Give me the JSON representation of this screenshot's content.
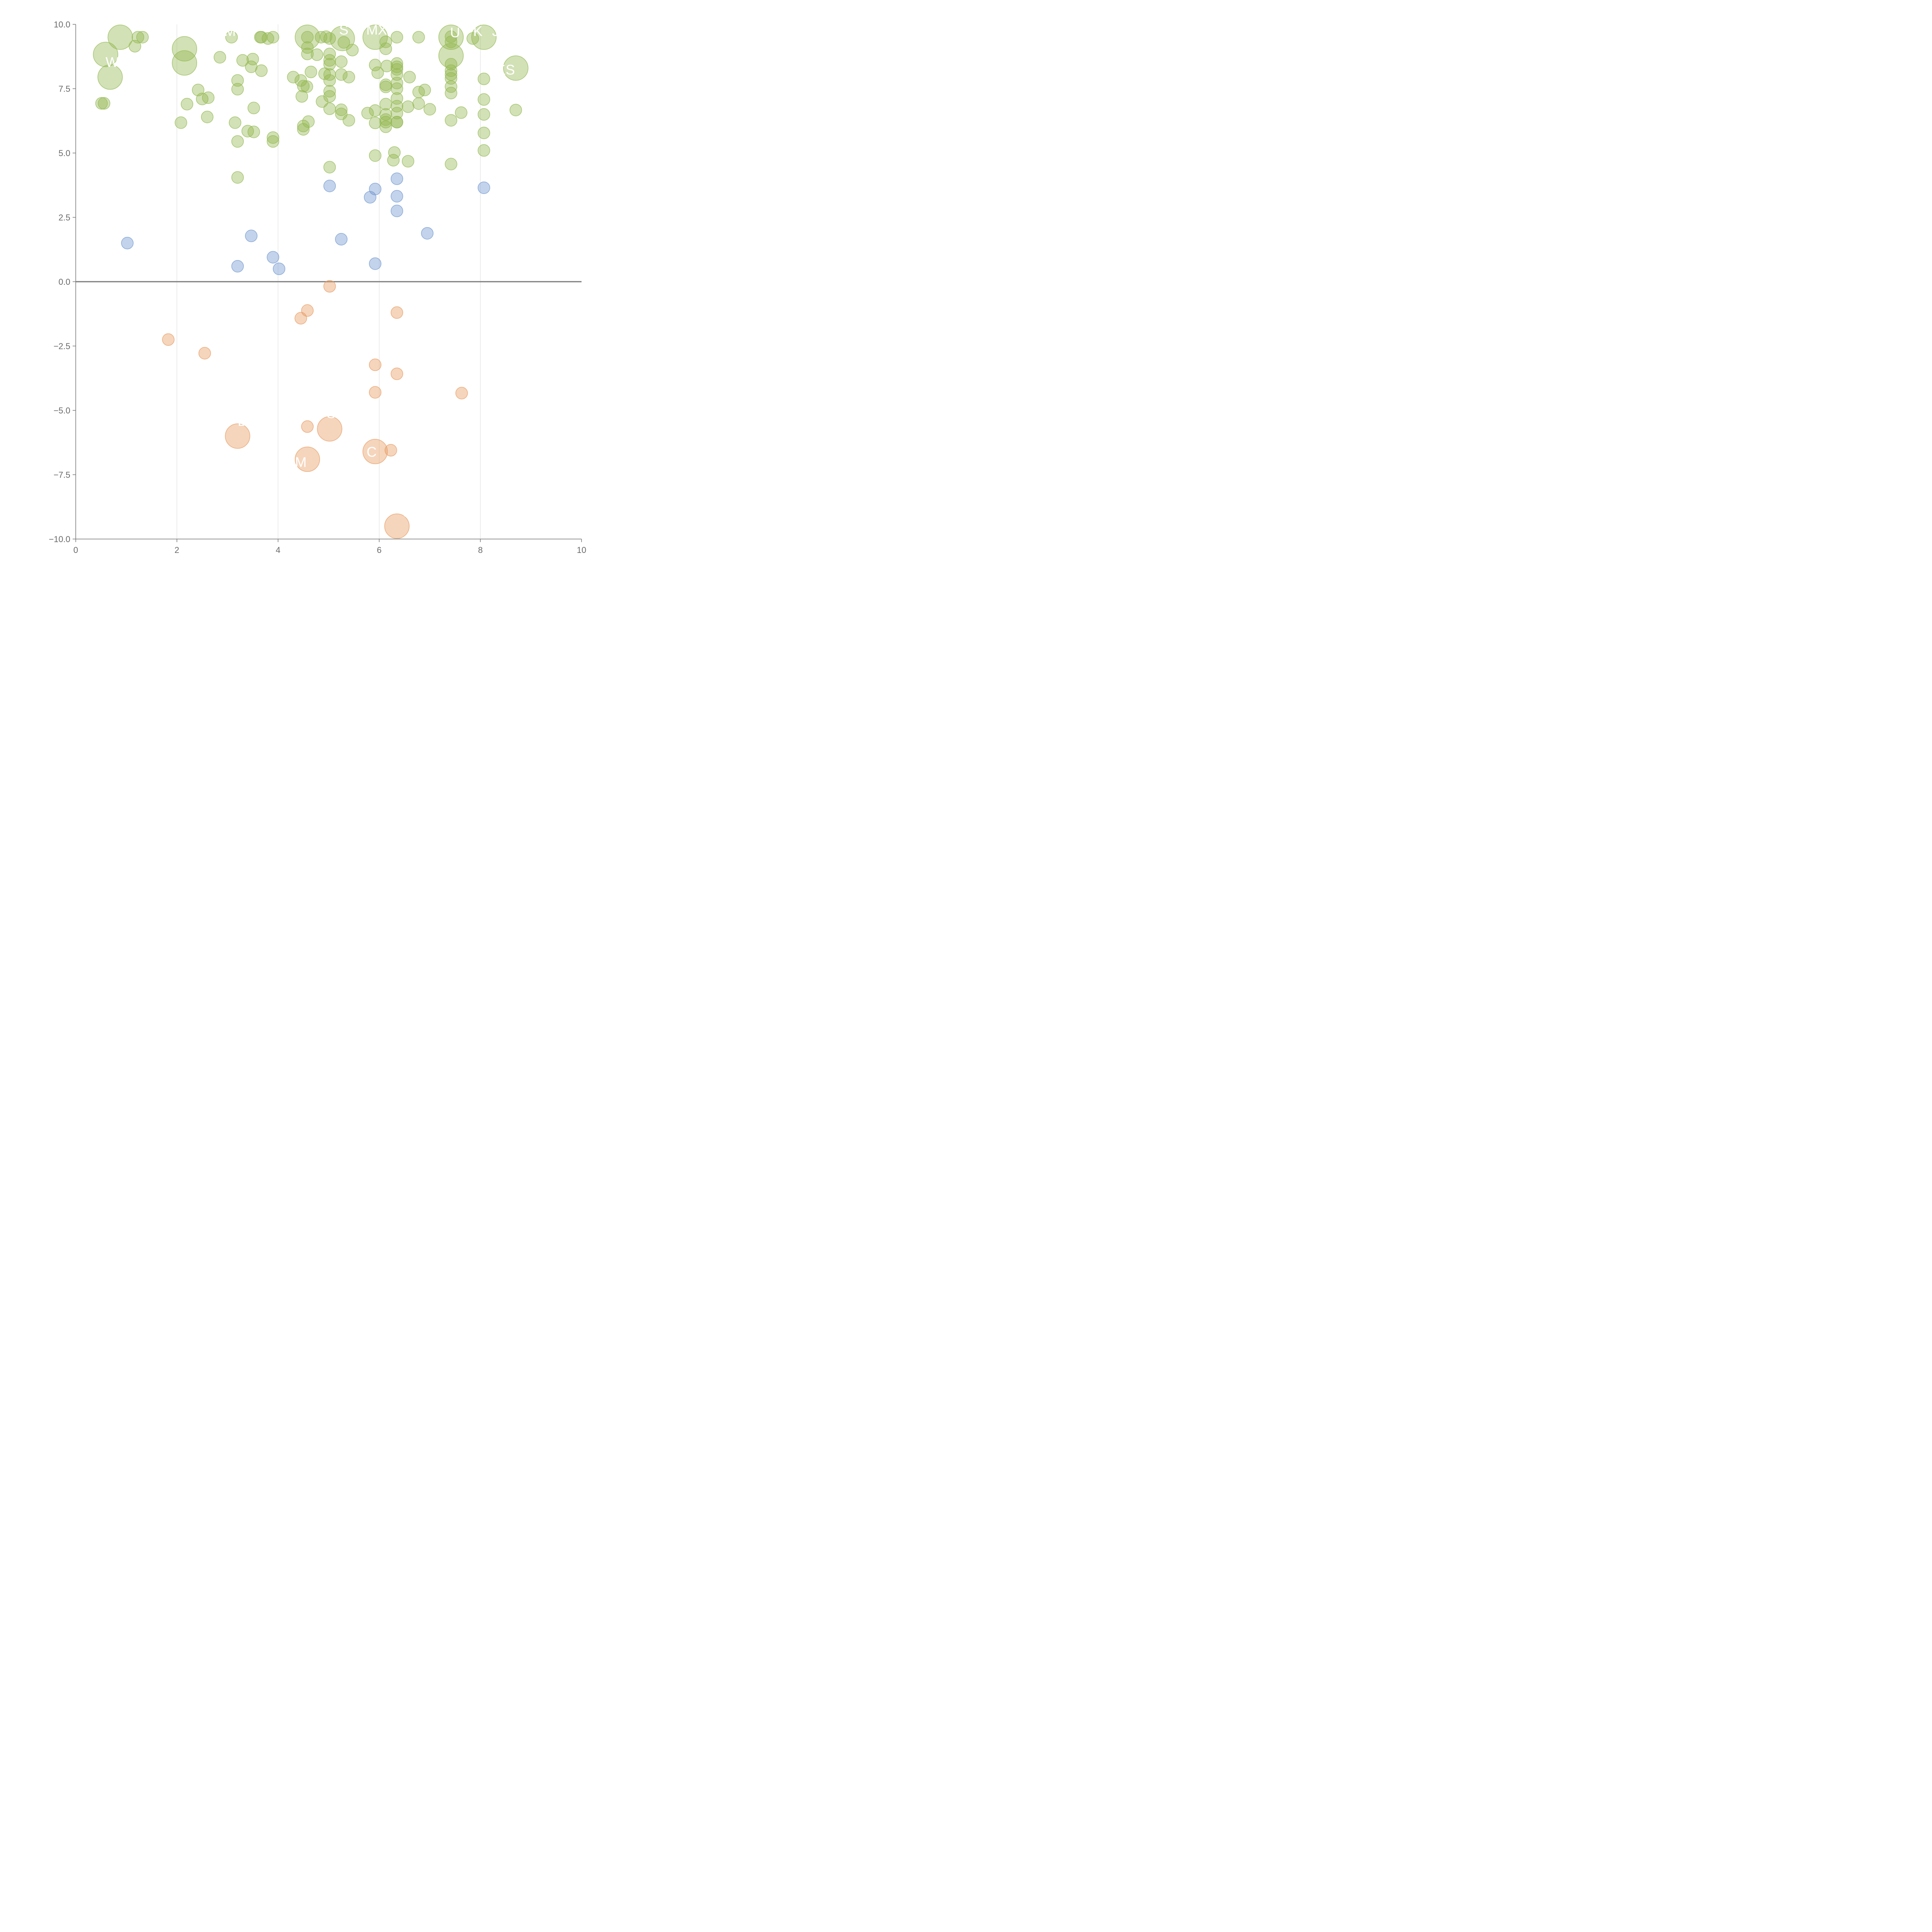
{
  "chart_data": {
    "type": "scatter",
    "title": "",
    "xlabel": "",
    "ylabel": "",
    "xlim": [
      0,
      10
    ],
    "ylim": [
      -10,
      10
    ],
    "x_ticks": [
      "0",
      "2",
      "4",
      "6",
      "8",
      "10"
    ],
    "y_ticks": [
      "−10.0",
      "−7.5",
      "−5.0",
      "−2.5",
      "0.0",
      "2.5",
      "5.0",
      "7.5",
      "10.0"
    ],
    "grid": "vertical",
    "zero_line": true,
    "colors": {
      "high": "#93b851",
      "mid": "#6f95cf",
      "low": "#e79a5f"
    },
    "series": [
      {
        "group": "high",
        "points": [
          {
            "x": 0.88,
            "y": 9.5,
            "s": 27
          },
          {
            "x": 1.23,
            "y": 9.5,
            "s": 13
          },
          {
            "x": 1.32,
            "y": 9.5,
            "s": 13
          },
          {
            "x": 1.17,
            "y": 9.15,
            "s": 13
          },
          {
            "x": 0.59,
            "y": 8.83,
            "s": 27
          },
          {
            "x": 0.68,
            "y": 7.95,
            "s": 27
          },
          {
            "x": 0.51,
            "y": 6.93,
            "s": 13
          },
          {
            "x": 0.56,
            "y": 6.93,
            "s": 13
          },
          {
            "x": 2.15,
            "y": 9.05,
            "s": 27
          },
          {
            "x": 2.15,
            "y": 8.5,
            "s": 27
          },
          {
            "x": 2.2,
            "y": 6.9,
            "s": 13
          },
          {
            "x": 2.08,
            "y": 6.18,
            "s": 13
          },
          {
            "x": 2.42,
            "y": 7.45,
            "s": 13
          },
          {
            "x": 2.5,
            "y": 7.1,
            "s": 13
          },
          {
            "x": 2.62,
            "y": 7.15,
            "s": 13
          },
          {
            "x": 2.6,
            "y": 6.4,
            "s": 13
          },
          {
            "x": 2.85,
            "y": 8.72,
            "s": 13
          },
          {
            "x": 3.08,
            "y": 9.5,
            "s": 13
          },
          {
            "x": 3.2,
            "y": 7.82,
            "s": 13
          },
          {
            "x": 3.2,
            "y": 7.48,
            "s": 13
          },
          {
            "x": 3.15,
            "y": 6.18,
            "s": 13
          },
          {
            "x": 3.2,
            "y": 5.45,
            "s": 13
          },
          {
            "x": 3.2,
            "y": 4.05,
            "s": 13
          },
          {
            "x": 3.3,
            "y": 8.6,
            "s": 13
          },
          {
            "x": 3.47,
            "y": 8.35,
            "s": 13
          },
          {
            "x": 3.5,
            "y": 8.65,
            "s": 13
          },
          {
            "x": 3.52,
            "y": 6.75,
            "s": 13
          },
          {
            "x": 3.4,
            "y": 5.85,
            "s": 13
          },
          {
            "x": 3.52,
            "y": 5.82,
            "s": 13
          },
          {
            "x": 3.65,
            "y": 9.5,
            "s": 13
          },
          {
            "x": 3.67,
            "y": 9.5,
            "s": 13
          },
          {
            "x": 3.8,
            "y": 9.45,
            "s": 13
          },
          {
            "x": 3.9,
            "y": 9.5,
            "s": 13
          },
          {
            "x": 3.67,
            "y": 8.2,
            "s": 13
          },
          {
            "x": 3.9,
            "y": 5.6,
            "s": 13
          },
          {
            "x": 3.9,
            "y": 5.45,
            "s": 13
          },
          {
            "x": 4.3,
            "y": 7.95,
            "s": 13
          },
          {
            "x": 4.45,
            "y": 7.82,
            "s": 13
          },
          {
            "x": 4.5,
            "y": 7.6,
            "s": 13
          },
          {
            "x": 4.57,
            "y": 7.58,
            "s": 13
          },
          {
            "x": 4.47,
            "y": 7.2,
            "s": 13
          },
          {
            "x": 4.5,
            "y": 6.05,
            "s": 13
          },
          {
            "x": 4.5,
            "y": 5.92,
            "s": 13
          },
          {
            "x": 4.6,
            "y": 6.22,
            "s": 13
          },
          {
            "x": 4.58,
            "y": 9.5,
            "s": 27
          },
          {
            "x": 4.58,
            "y": 9.5,
            "s": 13
          },
          {
            "x": 4.58,
            "y": 9.1,
            "s": 13
          },
          {
            "x": 4.58,
            "y": 8.85,
            "s": 13
          },
          {
            "x": 4.65,
            "y": 8.15,
            "s": 13
          },
          {
            "x": 4.77,
            "y": 8.82,
            "s": 13
          },
          {
            "x": 4.85,
            "y": 9.5,
            "s": 13
          },
          {
            "x": 4.95,
            "y": 9.52,
            "s": 13
          },
          {
            "x": 5.02,
            "y": 9.45,
            "s": 13
          },
          {
            "x": 5.02,
            "y": 8.85,
            "s": 13
          },
          {
            "x": 5.02,
            "y": 8.6,
            "s": 13
          },
          {
            "x": 5.02,
            "y": 8.45,
            "s": 13
          },
          {
            "x": 4.92,
            "y": 8.08,
            "s": 13
          },
          {
            "x": 5.02,
            "y": 8.05,
            "s": 13
          },
          {
            "x": 5.02,
            "y": 7.82,
            "s": 13
          },
          {
            "x": 5.02,
            "y": 7.4,
            "s": 13
          },
          {
            "x": 5.02,
            "y": 7.2,
            "s": 13
          },
          {
            "x": 4.87,
            "y": 7.0,
            "s": 13
          },
          {
            "x": 5.02,
            "y": 6.72,
            "s": 13
          },
          {
            "x": 5.02,
            "y": 4.45,
            "s": 13
          },
          {
            "x": 5.27,
            "y": 9.45,
            "s": 27
          },
          {
            "x": 5.3,
            "y": 9.3,
            "s": 13
          },
          {
            "x": 5.47,
            "y": 9.0,
            "s": 13
          },
          {
            "x": 5.25,
            "y": 8.55,
            "s": 13
          },
          {
            "x": 5.25,
            "y": 8.05,
            "s": 13
          },
          {
            "x": 5.4,
            "y": 7.95,
            "s": 13
          },
          {
            "x": 5.25,
            "y": 6.68,
            "s": 13
          },
          {
            "x": 5.25,
            "y": 6.52,
            "s": 13
          },
          {
            "x": 5.4,
            "y": 6.27,
            "s": 13
          },
          {
            "x": 5.92,
            "y": 9.5,
            "s": 27
          },
          {
            "x": 6.13,
            "y": 9.32,
            "s": 13
          },
          {
            "x": 6.13,
            "y": 9.05,
            "s": 13
          },
          {
            "x": 6.35,
            "y": 9.5,
            "s": 13
          },
          {
            "x": 5.92,
            "y": 8.42,
            "s": 13
          },
          {
            "x": 5.97,
            "y": 8.12,
            "s": 13
          },
          {
            "x": 6.15,
            "y": 8.38,
            "s": 13
          },
          {
            "x": 5.92,
            "y": 6.65,
            "s": 13
          },
          {
            "x": 5.77,
            "y": 6.55,
            "s": 13
          },
          {
            "x": 5.92,
            "y": 6.17,
            "s": 13
          },
          {
            "x": 5.92,
            "y": 4.9,
            "s": 13
          },
          {
            "x": 6.13,
            "y": 7.65,
            "s": 13
          },
          {
            "x": 6.13,
            "y": 7.57,
            "s": 13
          },
          {
            "x": 6.13,
            "y": 6.9,
            "s": 13
          },
          {
            "x": 6.13,
            "y": 6.5,
            "s": 13
          },
          {
            "x": 6.13,
            "y": 6.3,
            "s": 13
          },
          {
            "x": 6.13,
            "y": 6.2,
            "s": 13
          },
          {
            "x": 6.13,
            "y": 6.02,
            "s": 13
          },
          {
            "x": 6.35,
            "y": 8.48,
            "s": 13
          },
          {
            "x": 6.35,
            "y": 8.35,
            "s": 13
          },
          {
            "x": 6.35,
            "y": 8.25,
            "s": 13
          },
          {
            "x": 6.35,
            "y": 8.05,
            "s": 13
          },
          {
            "x": 6.35,
            "y": 7.72,
            "s": 13
          },
          {
            "x": 6.35,
            "y": 7.5,
            "s": 13
          },
          {
            "x": 6.35,
            "y": 7.12,
            "s": 13
          },
          {
            "x": 6.35,
            "y": 6.82,
            "s": 13
          },
          {
            "x": 6.35,
            "y": 6.55,
            "s": 13
          },
          {
            "x": 6.35,
            "y": 6.2,
            "s": 13
          },
          {
            "x": 6.35,
            "y": 6.2,
            "s": 13
          },
          {
            "x": 6.3,
            "y": 5.02,
            "s": 13
          },
          {
            "x": 6.28,
            "y": 4.72,
            "s": 13
          },
          {
            "x": 6.57,
            "y": 4.68,
            "s": 13
          },
          {
            "x": 6.57,
            "y": 6.8,
            "s": 13
          },
          {
            "x": 6.6,
            "y": 7.95,
            "s": 13
          },
          {
            "x": 6.78,
            "y": 9.5,
            "s": 13
          },
          {
            "x": 6.78,
            "y": 7.37,
            "s": 13
          },
          {
            "x": 6.78,
            "y": 6.92,
            "s": 13
          },
          {
            "x": 6.9,
            "y": 7.45,
            "s": 13
          },
          {
            "x": 7.0,
            "y": 6.7,
            "s": 13
          },
          {
            "x": 7.42,
            "y": 9.5,
            "s": 27
          },
          {
            "x": 7.42,
            "y": 9.52,
            "s": 13
          },
          {
            "x": 7.42,
            "y": 9.32,
            "s": 13
          },
          {
            "x": 7.42,
            "y": 8.78,
            "s": 27
          },
          {
            "x": 7.42,
            "y": 8.45,
            "s": 13
          },
          {
            "x": 7.42,
            "y": 8.2,
            "s": 13
          },
          {
            "x": 7.42,
            "y": 8.05,
            "s": 13
          },
          {
            "x": 7.42,
            "y": 7.9,
            "s": 13
          },
          {
            "x": 7.42,
            "y": 7.58,
            "s": 13
          },
          {
            "x": 7.42,
            "y": 7.33,
            "s": 13
          },
          {
            "x": 7.42,
            "y": 6.27,
            "s": 13
          },
          {
            "x": 7.42,
            "y": 4.57,
            "s": 13
          },
          {
            "x": 7.62,
            "y": 6.57,
            "s": 13
          },
          {
            "x": 7.85,
            "y": 9.45,
            "s": 13
          },
          {
            "x": 8.07,
            "y": 9.5,
            "s": 27
          },
          {
            "x": 8.07,
            "y": 7.88,
            "s": 13
          },
          {
            "x": 8.07,
            "y": 7.08,
            "s": 13
          },
          {
            "x": 8.07,
            "y": 6.5,
            "s": 13
          },
          {
            "x": 8.07,
            "y": 5.78,
            "s": 13
          },
          {
            "x": 8.07,
            "y": 5.1,
            "s": 13
          },
          {
            "x": 8.7,
            "y": 8.3,
            "s": 27
          },
          {
            "x": 8.7,
            "y": 6.67,
            "s": 13
          }
        ]
      },
      {
        "group": "mid",
        "points": [
          {
            "x": 1.02,
            "y": 1.5,
            "s": 13
          },
          {
            "x": 3.2,
            "y": 0.6,
            "s": 13
          },
          {
            "x": 3.47,
            "y": 1.78,
            "s": 13
          },
          {
            "x": 3.9,
            "y": 0.95,
            "s": 13
          },
          {
            "x": 4.02,
            "y": 0.5,
            "s": 13
          },
          {
            "x": 5.02,
            "y": 3.72,
            "s": 13
          },
          {
            "x": 5.25,
            "y": 1.65,
            "s": 13
          },
          {
            "x": 5.82,
            "y": 3.28,
            "s": 13
          },
          {
            "x": 5.92,
            "y": 3.6,
            "s": 13
          },
          {
            "x": 5.92,
            "y": 0.7,
            "s": 13
          },
          {
            "x": 6.35,
            "y": 4.0,
            "s": 13
          },
          {
            "x": 6.35,
            "y": 3.32,
            "s": 13
          },
          {
            "x": 6.35,
            "y": 2.75,
            "s": 13
          },
          {
            "x": 6.95,
            "y": 1.88,
            "s": 13
          },
          {
            "x": 8.07,
            "y": 3.65,
            "s": 13
          }
        ]
      },
      {
        "group": "low",
        "points": [
          {
            "x": 5.02,
            "y": -0.18,
            "s": 13
          },
          {
            "x": 4.45,
            "y": -1.42,
            "s": 13
          },
          {
            "x": 4.58,
            "y": -1.12,
            "s": 13
          },
          {
            "x": 6.35,
            "y": -1.2,
            "s": 13
          },
          {
            "x": 1.83,
            "y": -2.25,
            "s": 13
          },
          {
            "x": 2.55,
            "y": -2.78,
            "s": 13
          },
          {
            "x": 5.92,
            "y": -3.23,
            "s": 13
          },
          {
            "x": 6.35,
            "y": -3.58,
            "s": 13
          },
          {
            "x": 5.92,
            "y": -4.3,
            "s": 13
          },
          {
            "x": 7.63,
            "y": -4.33,
            "s": 13
          },
          {
            "x": 4.58,
            "y": -5.63,
            "s": 13
          },
          {
            "x": 5.02,
            "y": -5.72,
            "s": 27
          },
          {
            "x": 3.2,
            "y": -6.0,
            "s": 27
          },
          {
            "x": 5.92,
            "y": -6.6,
            "s": 27
          },
          {
            "x": 6.23,
            "y": -6.55,
            "s": 13
          },
          {
            "x": 4.58,
            "y": -6.9,
            "s": 27
          },
          {
            "x": 6.35,
            "y": -9.5,
            "s": 27
          }
        ]
      }
    ],
    "annotations": [
      {
        "text": "W",
        "x": 0.72,
        "y": 8.35
      },
      {
        "text": "M",
        "x": 3.05,
        "y": 9.55
      },
      {
        "text": "S",
        "x": 5.3,
        "y": 9.6
      },
      {
        "text": "MX",
        "x": 5.95,
        "y": 9.6
      },
      {
        "text": "U",
        "x": 7.5,
        "y": 9.5
      },
      {
        "text": "K",
        "x": 7.95,
        "y": 9.55
      },
      {
        "text": "J",
        "x": 8.3,
        "y": 9.55
      },
      {
        "text": "KS",
        "x": 8.5,
        "y": 8.05
      },
      {
        "text": "D",
        "x": 3.3,
        "y": -5.6
      },
      {
        "text": "S",
        "x": 5.05,
        "y": -5.3
      },
      {
        "text": "M",
        "x": 4.45,
        "y": -7.2
      },
      {
        "text": "C",
        "x": 5.85,
        "y": -6.8
      },
      {
        "text": "C",
        "x": 6.55,
        "y": -9.15
      }
    ]
  }
}
